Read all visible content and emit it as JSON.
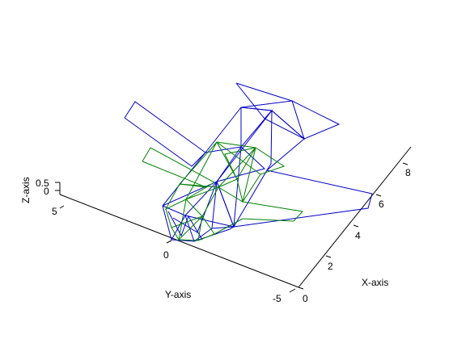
{
  "chart_data": {
    "type": "wireframe-3d",
    "title": "",
    "axes": {
      "x": {
        "label": "X-axis",
        "ticks": [
          "0",
          "2",
          "4",
          "6",
          "8"
        ],
        "range": [
          0,
          9
        ]
      },
      "y": {
        "label": "Y-axis",
        "ticks": [
          "5",
          "0",
          "-5"
        ],
        "range": [
          -5,
          5
        ]
      },
      "z": {
        "label": "Z-axis",
        "ticks": [
          "0",
          "0.5"
        ],
        "range": [
          0,
          0.5
        ]
      }
    },
    "grid": false,
    "series": [
      {
        "color": "#0000cc"
      },
      {
        "color": "#008000"
      }
    ]
  }
}
